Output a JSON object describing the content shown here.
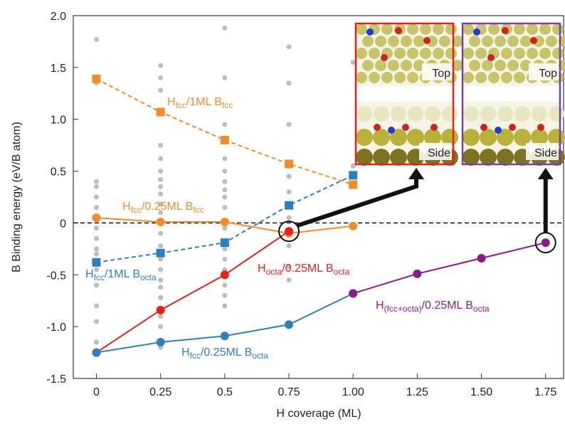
{
  "chart_data": {
    "type": "line",
    "xlabel": "H coverage (ML)",
    "ylabel": "B Binding energy (eV/B atom)",
    "xlim": [
      -0.09,
      1.82
    ],
    "ylim": [
      -1.5,
      2.0
    ],
    "xticks": [
      0,
      0.25,
      0.5,
      0.75,
      {
        "value": 1,
        "label": "1.00"
      },
      {
        "value": 1.25,
        "label": "1.25"
      },
      {
        "value": 1.5,
        "label": "1.50"
      },
      1.75
    ],
    "yticks": [
      {
        "value": 2,
        "label": "2.0"
      },
      1.5,
      {
        "value": 1,
        "label": "1.0"
      },
      0.5,
      0,
      -0.5,
      {
        "value": -1,
        "label": "-1.0"
      },
      -1.5
    ],
    "hline": 0,
    "series": [
      {
        "label": [
          "H",
          "fcc",
          "/1ML B",
          "fcc"
        ],
        "color": "#f28c28",
        "marker": "square",
        "dashed": true,
        "x": [
          0,
          0.25,
          0.5,
          0.75,
          1
        ],
        "values": [
          1.39,
          1.07,
          0.8,
          0.57,
          0.37
        ]
      },
      {
        "label": [
          "H",
          "fcc",
          "/1ML B",
          "octa"
        ],
        "color": "#2e7fbf",
        "marker": "square",
        "dashed": true,
        "x": [
          0,
          0.25,
          0.5,
          0.75,
          1
        ],
        "values": [
          -0.38,
          -0.29,
          -0.19,
          0.17,
          0.46
        ]
      },
      {
        "label": [
          "H",
          "fcc",
          "/0.25ML B",
          "fcc"
        ],
        "color": "#f28c28",
        "marker": "circle",
        "dashed": false,
        "x": [
          0,
          0.25,
          0.5,
          0.75,
          1
        ],
        "values": [
          0.05,
          0.01,
          0.01,
          -0.1,
          -0.03
        ]
      },
      {
        "label": [
          "H",
          "octa",
          "/0.25ML B",
          "octa"
        ],
        "color": "#e8201c",
        "marker": "circle",
        "dashed": false,
        "x": [
          0,
          0.25,
          0.5,
          0.75
        ],
        "values": [
          -1.25,
          -0.84,
          -0.5,
          -0.08
        ]
      },
      {
        "label": [
          "H",
          "fcc",
          "/0.25ML B",
          "octa"
        ],
        "color": "#2e7fbf",
        "marker": "circle",
        "dashed": false,
        "x": [
          0,
          0.25,
          0.5,
          0.75,
          1
        ],
        "values": [
          -1.25,
          -1.15,
          -1.09,
          -0.98,
          -0.68
        ]
      },
      {
        "label": [
          "H",
          "(fcc+octa)",
          "/0.25ML B",
          "octa"
        ],
        "color": "#8b1a8b",
        "marker": "circle",
        "dashed": false,
        "x": [
          1,
          1.25,
          1.5,
          1.75
        ],
        "values": [
          -0.68,
          -0.49,
          -0.34,
          -0.19
        ]
      }
    ],
    "background_points": {
      "color": "#bdbdbd",
      "x": [
        0,
        0,
        0,
        0,
        0,
        0,
        0,
        0,
        0,
        0,
        0,
        0,
        0,
        0,
        0,
        0.25,
        0.25,
        0.25,
        0.25,
        0.25,
        0.25,
        0.25,
        0.25,
        0.25,
        0.25,
        0.25,
        0.25,
        0.25,
        0.25,
        0.25,
        0.25,
        0.25,
        0.25,
        0.25,
        0.25,
        0.25,
        0.5,
        0.5,
        0.5,
        0.5,
        0.5,
        0.5,
        0.5,
        0.5,
        0.5,
        0.5,
        0.5,
        0.5,
        0.5,
        0.5,
        0.5,
        0.5,
        0.75,
        0.75,
        0.75,
        0.75,
        0.75,
        0.75,
        0.75,
        0.75,
        0.75,
        0.75,
        0.75,
        1,
        1
      ],
      "values": [
        1.77,
        1.35,
        0.4,
        0.35,
        0.25,
        0.15,
        -0.05,
        -0.15,
        -0.25,
        -0.3,
        -0.45,
        -0.6,
        -0.8,
        -0.95,
        -1.15,
        1.52,
        1.4,
        1.28,
        0.75,
        0.62,
        0.5,
        0.42,
        0.35,
        0.28,
        0.18,
        0.1,
        -0.1,
        -0.22,
        -0.35,
        -0.45,
        -0.55,
        -0.62,
        -0.72,
        -0.9,
        -1.0,
        -1.2,
        1.88,
        1.4,
        0.95,
        0.62,
        0.5,
        0.4,
        0.32,
        0.25,
        0.15,
        -0.05,
        -0.25,
        -0.35,
        -0.45,
        -0.6,
        -0.7,
        -0.8,
        1.7,
        1.35,
        0.95,
        0.55,
        0.45,
        0.3,
        0.18,
        0.05,
        -0.22,
        -0.42,
        -0.55,
        1.55,
        0.55
      ]
    },
    "insets": [
      {
        "top": "Top",
        "side": "Side",
        "border": "#e8201c"
      },
      {
        "top": "Top",
        "side": "Side",
        "border": "#7b3fa0"
      }
    ]
  }
}
